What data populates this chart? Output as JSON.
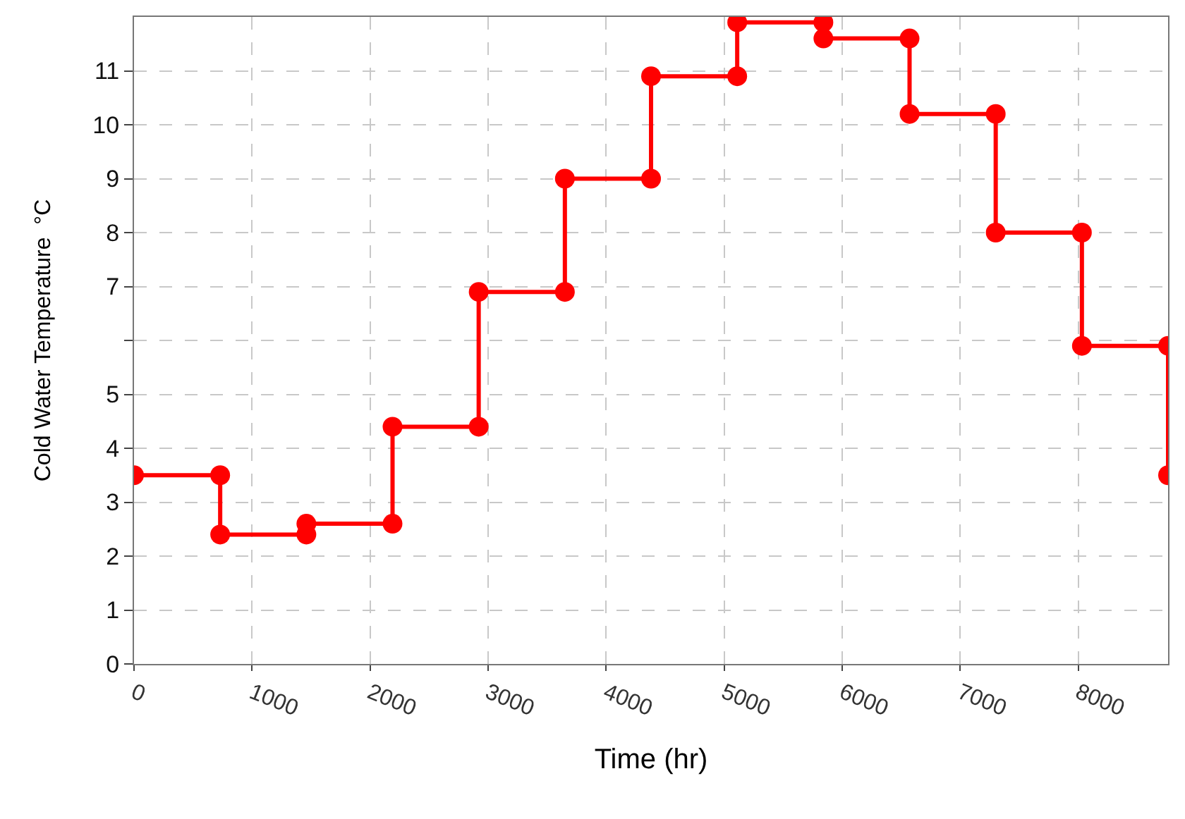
{
  "chart_data": {
    "type": "line",
    "xlabel": "Time (hr)",
    "ylabel": "Cold Water Temperature  °C",
    "x": [
      0,
      730,
      730,
      1460,
      1460,
      2190,
      2190,
      2920,
      2920,
      3650,
      3650,
      4380,
      4380,
      5110,
      5110,
      5840,
      5840,
      6570,
      6570,
      7300,
      7300,
      8030,
      8030,
      8760,
      8760
    ],
    "series": [
      {
        "color": "#ff0000",
        "values": [
          3.5,
          3.5,
          2.4,
          2.4,
          2.6,
          2.6,
          4.4,
          4.4,
          6.9,
          6.9,
          9.0,
          9.0,
          10.9,
          10.9,
          11.9,
          11.9,
          11.6,
          11.6,
          10.2,
          10.2,
          8.0,
          8.0,
          5.9,
          5.9,
          3.5
        ]
      }
    ],
    "xlim": [
      0,
      8760
    ],
    "ylim": [
      0,
      12
    ],
    "xticks": [
      0,
      1000,
      2000,
      3000,
      4000,
      5000,
      6000,
      7000,
      8000
    ],
    "yticks": [
      0,
      1,
      2,
      3,
      4,
      5,
      {
        "value": 6,
        "label": null
      },
      7,
      8,
      9,
      10,
      11
    ],
    "grid": true,
    "marker": "circle",
    "line_style": "solid",
    "legend": false
  }
}
